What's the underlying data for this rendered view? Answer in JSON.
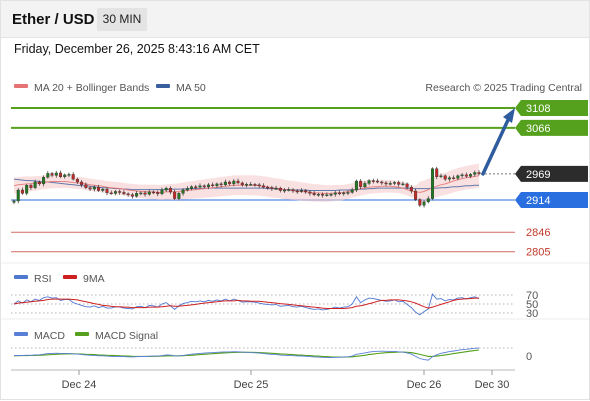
{
  "header": {
    "instrument": "Ether / USD",
    "timeframe": "30 MIN",
    "datetime": "Friday, December 26, 2025 8:43:16 AM CET"
  },
  "legend": {
    "ma20_label": "MA 20 + Bollinger Bands",
    "ma50_label": "MA 50",
    "credit": "Research © 2025 Trading Central"
  },
  "colors": {
    "ma20": "#e57373",
    "ma50": "#3a5f9f",
    "candle_up": "#1f7a1f",
    "candle_down": "#c62828",
    "target": "#55a01c",
    "support": "#c0392b",
    "pivot": "#2a6fe0",
    "rsi": "#4f79d0",
    "rsi_ma": "#cf2020",
    "macd": "#5a7fd6",
    "macd_signal": "#55a01c",
    "arrow": "#2e5c9e"
  },
  "chart_data": [
    {
      "type": "candlestick",
      "title": "Ether / USD",
      "x_ticks": [
        "Dec 24",
        "Dec 25",
        "Dec 26",
        "Dec 30"
      ],
      "price_labels": [
        {
          "value": 3108,
          "label": "3108",
          "kind": "target"
        },
        {
          "value": 3066,
          "label": "3066",
          "kind": "target"
        },
        {
          "value": 2969,
          "label": "2969",
          "kind": "last"
        },
        {
          "value": 2914,
          "label": "2914",
          "kind": "pivot"
        },
        {
          "value": 2846,
          "label": "2846",
          "kind": "support"
        },
        {
          "value": 2805,
          "label": "2805",
          "kind": "support"
        }
      ],
      "close": [
        2912,
        2935,
        2928,
        2945,
        2940,
        2952,
        2948,
        2962,
        2970,
        2966,
        2971,
        2963,
        2967,
        2968,
        2958,
        2952,
        2946,
        2940,
        2937,
        2941,
        2934,
        2937,
        2929,
        2928,
        2932,
        2930,
        2927,
        2925,
        2922,
        2928,
        2929,
        2926,
        2931,
        2930,
        2927,
        2935,
        2939,
        2931,
        2917,
        2928,
        2935,
        2938,
        2942,
        2941,
        2944,
        2942,
        2946,
        2944,
        2948,
        2946,
        2952,
        2948,
        2954,
        2950,
        2946,
        2947,
        2947,
        2946,
        2944,
        2941,
        2940,
        2938,
        2939,
        2934,
        2935,
        2936,
        2933,
        2932,
        2934,
        2931,
        2928,
        2925,
        2926,
        2924,
        2925,
        2926,
        2929,
        2927,
        2929,
        2930,
        2935,
        2954,
        2942,
        2949,
        2955,
        2954,
        2952,
        2950,
        2948,
        2949,
        2951,
        2947,
        2948,
        2941,
        2933,
        2915,
        2903,
        2910,
        2917,
        2980,
        2963,
        2965,
        2958,
        2961,
        2960,
        2965,
        2967,
        2964,
        2968,
        2972,
        2969
      ],
      "ma20": [
        2944,
        2946,
        2947,
        2948,
        2948,
        2949,
        2950,
        2951,
        2952,
        2953,
        2953,
        2953,
        2953,
        2952,
        2951,
        2950,
        2949,
        2948,
        2946,
        2945,
        2944,
        2943,
        2941,
        2940,
        2939,
        2938,
        2937,
        2935,
        2934,
        2933,
        2932,
        2932,
        2931,
        2931,
        2930,
        2930,
        2931,
        2931,
        2931,
        2932,
        2933,
        2934,
        2935,
        2936,
        2937,
        2938,
        2939,
        2940,
        2941,
        2942,
        2943,
        2944,
        2945,
        2945,
        2945,
        2945,
        2945,
        2945,
        2944,
        2943,
        2942,
        2940,
        2939,
        2938,
        2936,
        2935,
        2934,
        2933,
        2932,
        2931,
        2930,
        2929,
        2929,
        2928,
        2928,
        2928,
        2929,
        2929,
        2930,
        2932,
        2934,
        2936,
        2938,
        2940,
        2941,
        2942,
        2942,
        2943,
        2943,
        2943,
        2942,
        2941,
        2939,
        2936,
        2933,
        2931,
        2930,
        2932,
        2936,
        2940,
        2943,
        2946,
        2948,
        2951,
        2954,
        2957,
        2959,
        2961,
        2962,
        2964,
        2965
      ],
      "ma50": [
        2958,
        2957,
        2956,
        2955,
        2955,
        2954,
        2953,
        2952,
        2952,
        2951,
        2950,
        2949,
        2948,
        2947,
        2946,
        2945,
        2944,
        2944,
        2943,
        2942,
        2941,
        2940,
        2940,
        2939,
        2938,
        2938,
        2937,
        2937,
        2936,
        2936,
        2936,
        2936,
        2936,
        2936,
        2936,
        2936,
        2936,
        2937,
        2937,
        2937,
        2937,
        2938,
        2938,
        2938,
        2938,
        2939,
        2939,
        2939,
        2939,
        2939,
        2939,
        2939,
        2939,
        2939,
        2939,
        2939,
        2939,
        2939,
        2939,
        2939,
        2938,
        2938,
        2937,
        2937,
        2936,
        2936,
        2935,
        2935,
        2935,
        2935,
        2934,
        2934,
        2934,
        2934,
        2934,
        2934,
        2934,
        2935,
        2935,
        2935,
        2936,
        2936,
        2937,
        2937,
        2938,
        2938,
        2939,
        2939,
        2939,
        2939,
        2939,
        2939,
        2939,
        2939,
        2938,
        2938,
        2938,
        2938,
        2938,
        2939,
        2939,
        2940,
        2940,
        2941,
        2942,
        2942,
        2943,
        2944,
        2944,
        2945,
        2945
      ],
      "forecast_arrow": {
        "from": 2969,
        "to": 3108
      }
    },
    {
      "type": "line",
      "title": "RSI",
      "series": [
        {
          "name": "RSI"
        },
        {
          "name": "9MA"
        }
      ],
      "levels": [
        70,
        50,
        30
      ],
      "rsi": [
        50,
        57,
        52,
        59,
        55,
        61,
        58,
        64,
        66,
        63,
        64,
        58,
        60,
        60,
        53,
        50,
        47,
        44,
        43,
        46,
        42,
        45,
        41,
        41,
        44,
        43,
        41,
        40,
        39,
        44,
        45,
        42,
        47,
        46,
        43,
        50,
        53,
        46,
        38,
        46,
        51,
        53,
        56,
        55,
        57,
        55,
        58,
        56,
        59,
        57,
        61,
        57,
        61,
        58,
        54,
        55,
        55,
        54,
        52,
        50,
        49,
        48,
        49,
        45,
        46,
        47,
        44,
        43,
        45,
        42,
        40,
        38,
        39,
        37,
        38,
        40,
        43,
        41,
        43,
        44,
        50,
        66,
        53,
        59,
        63,
        62,
        60,
        58,
        56,
        57,
        59,
        55,
        56,
        49,
        42,
        32,
        26,
        33,
        39,
        72,
        61,
        62,
        57,
        60,
        59,
        63,
        64,
        61,
        64,
        66,
        62
      ],
      "ma9": [
        50,
        52,
        53,
        54,
        55,
        56,
        57,
        58,
        60,
        61,
        61,
        61,
        61,
        61,
        60,
        59,
        57,
        55,
        53,
        51,
        49,
        47,
        46,
        45,
        44,
        44,
        43,
        43,
        42,
        42,
        42,
        42,
        43,
        43,
        43,
        44,
        45,
        46,
        45,
        45,
        46,
        47,
        48,
        49,
        51,
        52,
        53,
        54,
        55,
        56,
        57,
        57,
        57,
        58,
        57,
        57,
        56,
        56,
        56,
        55,
        54,
        53,
        52,
        51,
        50,
        49,
        48,
        47,
        46,
        45,
        44,
        43,
        42,
        41,
        40,
        40,
        40,
        40,
        40,
        41,
        42,
        45,
        46,
        48,
        51,
        53,
        56,
        58,
        58,
        59,
        59,
        59,
        58,
        57,
        55,
        52,
        48,
        44,
        41,
        43,
        46,
        49,
        52,
        55,
        58,
        60,
        61,
        62,
        62,
        63,
        63
      ]
    },
    {
      "type": "line",
      "title": "MACD",
      "series": [
        {
          "name": "MACD"
        },
        {
          "name": "MACD Signal"
        }
      ],
      "zero_label": "0",
      "macd": [
        -1.2,
        -0.8,
        -1.0,
        -0.4,
        -0.5,
        0.2,
        0.4,
        1.6,
        2.8,
        3.2,
        3.6,
        3.2,
        3.3,
        3.1,
        2.3,
        1.7,
        0.9,
        0.1,
        -0.6,
        -0.8,
        -1.5,
        -1.6,
        -2.3,
        -2.8,
        -2.8,
        -3.0,
        -3.3,
        -3.6,
        -3.9,
        -3.4,
        -3.0,
        -3.0,
        -2.4,
        -2.1,
        -2.1,
        -1.1,
        0.0,
        -0.3,
        -1.8,
        -1.6,
        -0.8,
        0.4,
        1.6,
        2.4,
        3.3,
        3.8,
        4.5,
        4.9,
        5.5,
        5.7,
        6.3,
        6.2,
        6.6,
        6.4,
        5.8,
        5.4,
        4.9,
        4.4,
        3.7,
        2.9,
        2.1,
        1.3,
        0.8,
        -0.1,
        -0.6,
        -0.8,
        -1.4,
        -1.9,
        -2.0,
        -2.5,
        -3.2,
        -3.9,
        -4.2,
        -4.8,
        -5.1,
        -5.2,
        -4.7,
        -4.4,
        -3.9,
        -3.4,
        -2.1,
        1.5,
        2.6,
        4.1,
        5.8,
        6.9,
        7.5,
        7.6,
        7.4,
        7.2,
        7.1,
        6.4,
        5.8,
        4.1,
        1.8,
        -2.7,
        -7.0,
        -9.3,
        -10.1,
        -3.4,
        0.4,
        3.5,
        5.0,
        6.8,
        8.0,
        9.5,
        10.8,
        11.5,
        12.4,
        13.5,
        14.0
      ],
      "signal": [
        -1.5,
        -1.4,
        -1.3,
        -1.1,
        -1.0,
        -0.8,
        -0.5,
        -0.1,
        0.5,
        1.0,
        1.5,
        1.9,
        2.2,
        2.4,
        2.4,
        2.2,
        1.9,
        1.5,
        1.1,
        0.7,
        0.3,
        -0.1,
        -0.5,
        -0.9,
        -1.3,
        -1.6,
        -1.9,
        -2.2,
        -2.5,
        -2.7,
        -2.7,
        -2.8,
        -2.7,
        -2.6,
        -2.5,
        -2.2,
        -1.8,
        -1.5,
        -1.5,
        -1.5,
        -1.4,
        -1.0,
        -0.5,
        0.1,
        0.8,
        1.4,
        2.0,
        2.6,
        3.2,
        3.7,
        4.3,
        4.7,
        5.1,
        5.4,
        5.5,
        5.5,
        5.4,
        5.2,
        4.9,
        4.5,
        4.0,
        3.5,
        2.9,
        2.3,
        1.7,
        1.2,
        0.7,
        0.2,
        -0.3,
        -0.8,
        -1.3,
        -1.8,
        -2.3,
        -2.8,
        -3.3,
        -3.7,
        -4.0,
        -4.1,
        -4.1,
        -4.0,
        -3.6,
        -2.6,
        -1.6,
        -0.5,
        0.7,
        1.9,
        3.0,
        3.9,
        4.6,
        5.1,
        5.5,
        5.7,
        5.7,
        5.4,
        4.7,
        3.2,
        1.2,
        -0.9,
        -2.7,
        -2.8,
        -2.2,
        -1.1,
        0.1,
        1.4,
        2.7,
        4.1,
        5.4,
        6.6,
        7.8,
        8.9,
        10.0
      ]
    }
  ]
}
